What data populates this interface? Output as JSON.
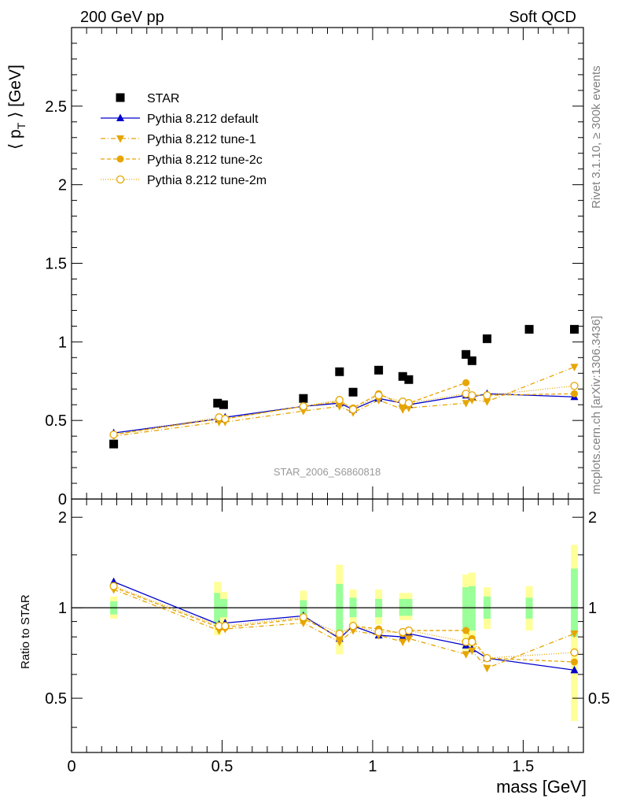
{
  "header": {
    "left": "200 GeV pp",
    "right": "Soft QCD"
  },
  "side_labels": {
    "rivet": "Rivet 3.1.10, ≥ 300k events",
    "mcplots": "mcplots.cern.ch [arXiv:1306.3436]"
  },
  "watermark": "STAR_2006_S6860818",
  "colors": {
    "star": "#000000",
    "default": "#0000cc",
    "tune": "#e6a500",
    "band_inner": "#99ff99",
    "band_outer": "#ffff99"
  },
  "chart_data": [
    {
      "type": "scatter",
      "title": "",
      "xlabel": "mass [GeV]",
      "ylabel_main": "⟨ p",
      "ylabel_sub": "T",
      "ylabel_tail": " ⟩ [GeV]",
      "xlim": [
        0,
        1.7
      ],
      "ylim": [
        0,
        3.0
      ],
      "xticks": [
        0,
        0.5,
        1,
        1.5
      ],
      "xtick_labels": [
        "0",
        "0.5",
        "1",
        "1.5"
      ],
      "yticks": [
        0,
        0.5,
        1,
        1.5,
        2,
        2.5
      ],
      "ytick_labels": [
        "0",
        "0.5",
        "1",
        "1.5",
        "2",
        "2.5"
      ],
      "legend_position": "top-left",
      "series": [
        {
          "name": "STAR",
          "style": "square",
          "x": [
            0.14,
            0.485,
            0.505,
            0.77,
            0.89,
            0.935,
            1.02,
            1.1,
            1.12,
            1.31,
            1.33,
            1.38,
            1.52,
            1.67
          ],
          "y": [
            0.35,
            0.61,
            0.6,
            0.64,
            0.81,
            0.68,
            0.82,
            0.78,
            0.76,
            0.92,
            0.88,
            1.02,
            1.08,
            1.08
          ]
        },
        {
          "name": "Pythia 8.212 default",
          "style": "triangle-up",
          "x": [
            0.14,
            0.49,
            0.51,
            0.77,
            0.89,
            0.935,
            1.02,
            1.1,
            1.12,
            1.31,
            1.33,
            1.38,
            1.67
          ],
          "y": [
            0.42,
            0.51,
            0.52,
            0.59,
            0.61,
            0.57,
            0.64,
            0.61,
            0.6,
            0.66,
            0.65,
            0.67,
            0.65
          ]
        },
        {
          "name": "Pythia 8.212 tune-1",
          "style": "triangle-down",
          "x": [
            0.14,
            0.49,
            0.51,
            0.77,
            0.89,
            0.935,
            1.02,
            1.1,
            1.12,
            1.31,
            1.33,
            1.38,
            1.67
          ],
          "y": [
            0.4,
            0.49,
            0.49,
            0.56,
            0.59,
            0.55,
            0.63,
            0.57,
            0.58,
            0.61,
            0.63,
            0.62,
            0.84
          ]
        },
        {
          "name": "Pythia 8.212 tune-2c",
          "style": "circle",
          "x": [
            0.14,
            0.49,
            0.51,
            0.77,
            0.89,
            0.935,
            1.02,
            1.1,
            1.12,
            1.31,
            1.33,
            1.38,
            1.67
          ],
          "y": [
            0.41,
            0.51,
            0.51,
            0.59,
            0.62,
            0.58,
            0.67,
            0.6,
            0.61,
            0.74,
            0.66,
            0.66,
            0.67
          ]
        },
        {
          "name": "Pythia 8.212 tune-2m",
          "style": "open-circle",
          "x": [
            0.14,
            0.49,
            0.51,
            0.77,
            0.89,
            0.935,
            1.02,
            1.1,
            1.12,
            1.31,
            1.33,
            1.38,
            1.67
          ],
          "y": [
            0.41,
            0.52,
            0.51,
            0.59,
            0.63,
            0.57,
            0.66,
            0.62,
            0.61,
            0.67,
            0.66,
            0.66,
            0.72
          ]
        }
      ]
    },
    {
      "type": "scatter",
      "title": "",
      "xlabel": "mass [GeV]",
      "ylabel": "Ratio to STAR",
      "xlim": [
        0,
        1.7
      ],
      "ylim": [
        0.33,
        2.3
      ],
      "yscale": "log",
      "reference_line": 1,
      "yticks": [
        0.5,
        1,
        2
      ],
      "ytick_labels": [
        "0.5",
        "1",
        "2"
      ],
      "bands": [
        {
          "x": 0.14,
          "inner": [
            0.95,
            1.05
          ],
          "outer": [
            0.92,
            1.09
          ]
        },
        {
          "x": 0.485,
          "inner": [
            0.88,
            1.12
          ],
          "outer": [
            0.81,
            1.22
          ]
        },
        {
          "x": 0.505,
          "inner": [
            0.93,
            1.07
          ],
          "outer": [
            0.87,
            1.13
          ]
        },
        {
          "x": 0.77,
          "inner": [
            0.95,
            1.06
          ],
          "outer": [
            0.89,
            1.14
          ]
        },
        {
          "x": 0.89,
          "inner": [
            0.82,
            1.2
          ],
          "outer": [
            0.7,
            1.39
          ]
        },
        {
          "x": 0.935,
          "inner": [
            0.93,
            1.08
          ],
          "outer": [
            0.87,
            1.15
          ]
        },
        {
          "x": 1.02,
          "inner": [
            0.93,
            1.07
          ],
          "outer": [
            0.88,
            1.15
          ]
        },
        {
          "x": 1.1,
          "inner": [
            0.94,
            1.07
          ],
          "outer": [
            0.91,
            1.12
          ]
        },
        {
          "x": 1.12,
          "inner": [
            0.94,
            1.07
          ],
          "outer": [
            0.91,
            1.12
          ]
        },
        {
          "x": 1.31,
          "inner": [
            0.84,
            1.17
          ],
          "outer": [
            0.72,
            1.29
          ]
        },
        {
          "x": 1.33,
          "inner": [
            0.84,
            1.18
          ],
          "outer": [
            0.72,
            1.31
          ]
        },
        {
          "x": 1.38,
          "inner": [
            0.92,
            1.09
          ],
          "outer": [
            0.85,
            1.17
          ]
        },
        {
          "x": 1.52,
          "inner": [
            0.92,
            1.08
          ],
          "outer": [
            0.84,
            1.18
          ]
        },
        {
          "x": 1.67,
          "inner": [
            0.8,
            1.35
          ],
          "outer": [
            0.42,
            1.62
          ]
        }
      ],
      "series": [
        {
          "name": "Pythia 8.212 default",
          "style": "triangle-up",
          "x": [
            0.14,
            0.49,
            0.51,
            0.77,
            0.89,
            0.935,
            1.02,
            1.1,
            1.12,
            1.31,
            1.33,
            1.38,
            1.67
          ],
          "y": [
            1.22,
            0.88,
            0.89,
            0.94,
            0.79,
            0.87,
            0.81,
            0.8,
            0.82,
            0.75,
            0.73,
            0.68,
            0.62
          ]
        },
        {
          "name": "Pythia 8.212 tune-1",
          "style": "triangle-down",
          "x": [
            0.14,
            0.49,
            0.51,
            0.77,
            0.89,
            0.935,
            1.02,
            1.1,
            1.12,
            1.31,
            1.33,
            1.38,
            1.67
          ],
          "y": [
            1.15,
            0.84,
            0.85,
            0.89,
            0.77,
            0.84,
            0.81,
            0.77,
            0.79,
            0.7,
            0.72,
            0.63,
            0.82
          ]
        },
        {
          "name": "Pythia 8.212 tune-2c",
          "style": "circle",
          "x": [
            0.14,
            0.49,
            0.51,
            0.77,
            0.89,
            0.935,
            1.02,
            1.1,
            1.12,
            1.31,
            1.33,
            1.38,
            1.67
          ],
          "y": [
            1.17,
            0.86,
            0.86,
            0.92,
            0.8,
            0.87,
            0.85,
            0.82,
            0.84,
            0.84,
            0.79,
            0.68,
            0.66
          ]
        },
        {
          "name": "Pythia 8.212 tune-2m",
          "style": "open-circle",
          "x": [
            0.14,
            0.49,
            0.51,
            0.77,
            0.89,
            0.935,
            1.02,
            1.1,
            1.12,
            1.31,
            1.33,
            1.38,
            1.67
          ],
          "y": [
            1.18,
            0.87,
            0.87,
            0.93,
            0.82,
            0.87,
            0.83,
            0.83,
            0.84,
            0.77,
            0.77,
            0.68,
            0.71
          ]
        }
      ]
    }
  ]
}
